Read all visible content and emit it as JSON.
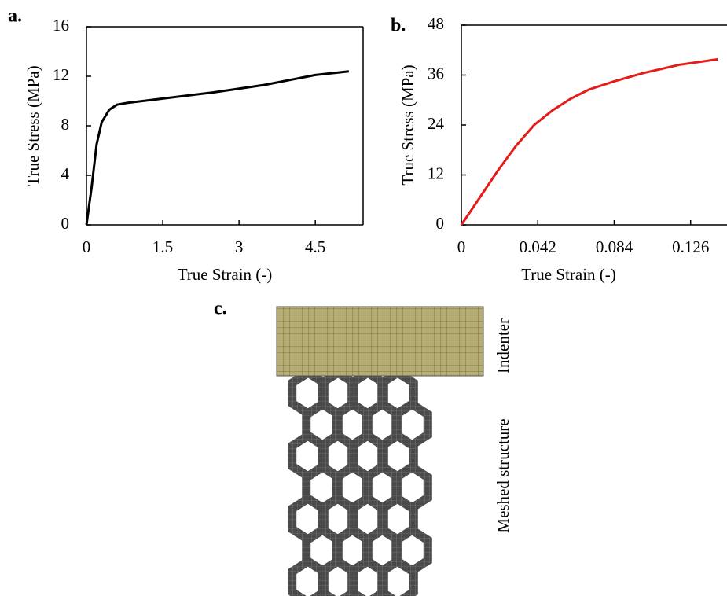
{
  "chart_data": [
    {
      "type": "line",
      "panel_label": "a.",
      "xlabel": "True Strain (-)",
      "ylabel": "True Stress (MPa)",
      "x": [
        0,
        0.05,
        0.1,
        0.2,
        0.3,
        0.45,
        0.6,
        0.8,
        1.5,
        2.5,
        3.5,
        4.5,
        5.16
      ],
      "values": [
        0,
        1.5,
        3,
        6.5,
        8.3,
        9.3,
        9.7,
        9.85,
        10.2,
        10.7,
        11.3,
        12.1,
        12.4
      ],
      "color": "#000000",
      "xlim": [
        0,
        5.44
      ],
      "ylim": [
        0,
        16
      ],
      "xticks": [
        0,
        1.5,
        3,
        4.5
      ],
      "yticks": [
        0,
        4,
        8,
        12,
        16
      ]
    },
    {
      "type": "line",
      "panel_label": "b.",
      "xlabel": "True Strain  (-)",
      "ylabel": "True Stress (MPa)",
      "x": [
        0,
        0.01,
        0.02,
        0.03,
        0.04,
        0.05,
        0.06,
        0.07,
        0.084,
        0.1,
        0.12,
        0.141
      ],
      "values": [
        0,
        6.5,
        13,
        19,
        24,
        27.5,
        30.3,
        32.5,
        34.5,
        36.5,
        38.5,
        39.8
      ],
      "color": "#e41b17",
      "xlim": [
        0,
        0.146
      ],
      "ylim": [
        0,
        48
      ],
      "xticks": [
        0,
        0.042,
        0.084,
        0.126
      ],
      "yticks": [
        0,
        12,
        24,
        36,
        48
      ]
    }
  ],
  "diagram": {
    "panel_label": "c.",
    "labels": [
      "Indenter",
      "Meshed structure"
    ]
  }
}
